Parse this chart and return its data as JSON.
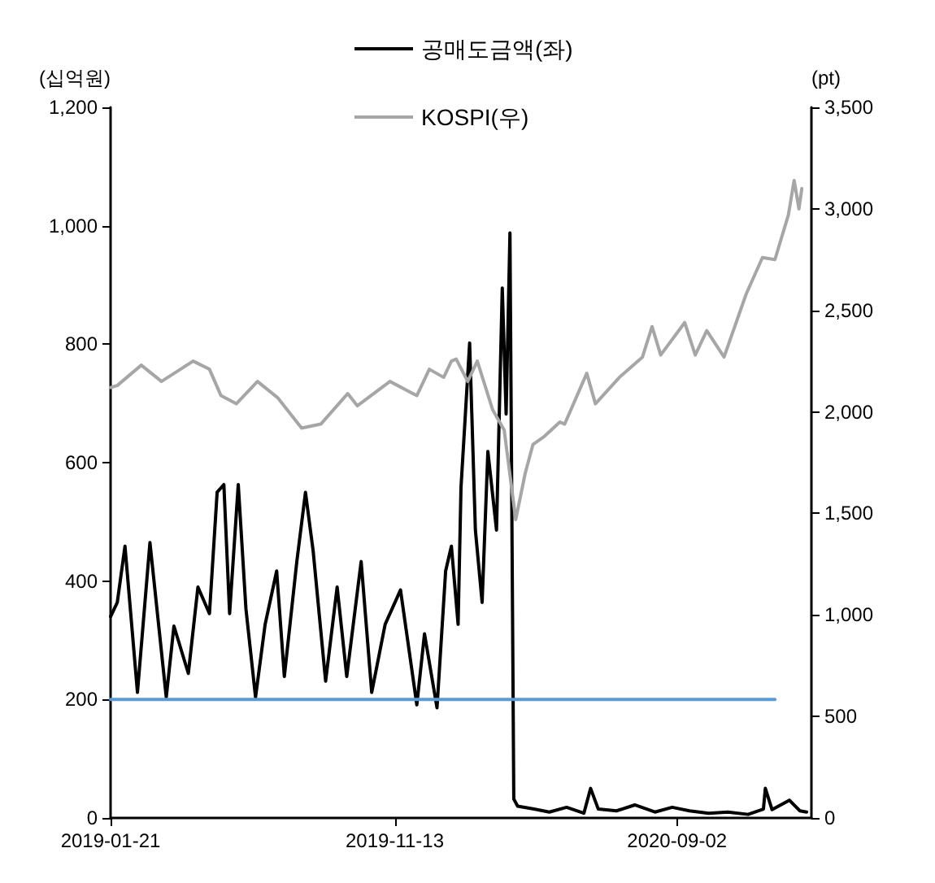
{
  "chart_data": {
    "type": "line",
    "ylabel": "(십억원)",
    "y2label": "(pt)",
    "legend": "top",
    "grid": false,
    "marker": "none",
    "line_style": "solid",
    "xlim": [
      "2019-01-21",
      "2021-01-20"
    ],
    "xticks": [
      "2019-01-21",
      "2019-11-13",
      "2020-09-02"
    ],
    "ylim": [
      0,
      1200
    ],
    "yticks": [
      0,
      200,
      400,
      600,
      800,
      {
        "value": 1000,
        "label": "1,000"
      },
      {
        "value": 1200,
        "label": "1,200"
      }
    ],
    "y2lim": [
      0,
      3500
    ],
    "y2ticks": [
      0,
      500,
      {
        "value": 1000,
        "label": "1,000"
      },
      {
        "value": 1500,
        "label": "1,500"
      },
      {
        "value": 2000,
        "label": "2,000"
      },
      {
        "value": 2500,
        "label": "2,500"
      },
      {
        "value": 3000,
        "label": "3,000"
      },
      {
        "value": 3500,
        "label": "3,500"
      }
    ],
    "series": [
      {
        "name": "공매도금액(좌)",
        "color": "#000000",
        "x": [
          "2019-01-21",
          "2019-01-28",
          "2019-02-05",
          "2019-02-18",
          "2019-03-03",
          "2019-03-20",
          "2019-03-28",
          "2019-04-12",
          "2019-04-22",
          "2019-05-04",
          "2019-05-12",
          "2019-05-19",
          "2019-05-25",
          "2019-06-03",
          "2019-06-11",
          "2019-06-21",
          "2019-07-01",
          "2019-07-13",
          "2019-07-21",
          "2019-08-03",
          "2019-08-12",
          "2019-08-20",
          "2019-09-02",
          "2019-09-14",
          "2019-09-24",
          "2019-10-09",
          "2019-10-20",
          "2019-11-03",
          "2019-11-19",
          "2019-12-06",
          "2019-12-14",
          "2019-12-27",
          "2020-01-05",
          "2020-01-11",
          "2020-01-18",
          "2020-01-21",
          "2020-01-30",
          "2020-02-05",
          "2020-02-12",
          "2020-02-18",
          "2020-02-27",
          "2020-03-04",
          "2020-03-08",
          "2020-03-12",
          "2020-03-16",
          "2020-03-20",
          "2020-04-06",
          "2020-04-22",
          "2020-05-10",
          "2020-05-28",
          "2020-06-04",
          "2020-06-12",
          "2020-07-01",
          "2020-07-20",
          "2020-08-10",
          "2020-08-28",
          "2020-09-15",
          "2020-10-05",
          "2020-10-25",
          "2020-11-15",
          "2020-12-01",
          "2020-12-03",
          "2020-12-10",
          "2020-12-28",
          "2021-01-08",
          "2021-01-15"
        ],
        "values": [
          340,
          364,
          459,
          212,
          465,
          204,
          324,
          244,
          390,
          345,
          550,
          563,
          345,
          563,
          353,
          204,
          327,
          417,
          239,
          433,
          550,
          451,
          231,
          390,
          239,
          433,
          212,
          327,
          385,
          191,
          311,
          186,
          417,
          459,
          327,
          558,
          802,
          486,
          364,
          619,
          486,
          895,
          682,
          988,
          32,
          20,
          15,
          10,
          18,
          8,
          50,
          15,
          12,
          22,
          10,
          18,
          12,
          8,
          10,
          6,
          15,
          50,
          14,
          30,
          12,
          10
        ],
        "axis": "y"
      },
      {
        "name": "KOSPI(우)",
        "color": "#a6a6a6",
        "axis": "y2",
        "x": [
          "2019-01-21",
          "2019-01-28",
          "2019-02-22",
          "2019-03-15",
          "2019-04-17",
          "2019-05-04",
          "2019-05-16",
          "2019-06-01",
          "2019-06-23",
          "2019-07-14",
          "2019-08-08",
          "2019-08-28",
          "2019-09-25",
          "2019-10-05",
          "2019-11-08",
          "2019-12-06",
          "2019-12-19",
          "2020-01-03",
          "2020-01-11",
          "2020-01-16",
          "2020-01-28",
          "2020-02-07",
          "2020-02-23",
          "2020-03-06",
          "2020-03-18",
          "2020-03-28",
          "2020-04-05",
          "2020-04-17",
          "2020-05-03",
          "2020-05-08",
          "2020-05-31",
          "2020-06-09",
          "2020-07-04",
          "2020-07-28",
          "2020-08-07",
          "2020-08-16",
          "2020-09-10",
          "2020-09-21",
          "2020-10-03",
          "2020-10-21",
          "2020-11-13",
          "2020-11-30",
          "2020-12-13",
          "2020-12-27",
          "2021-01-02",
          "2021-01-07",
          "2021-01-10"
        ],
        "values": [
          2120,
          2130,
          2230,
          2150,
          2250,
          2210,
          2080,
          2040,
          2150,
          2070,
          1920,
          1940,
          2090,
          2030,
          2150,
          2080,
          2210,
          2170,
          2250,
          2260,
          2150,
          2250,
          2010,
          1910,
          1470,
          1700,
          1840,
          1880,
          1950,
          1940,
          2190,
          2040,
          2170,
          2270,
          2420,
          2280,
          2440,
          2280,
          2400,
          2270,
          2580,
          2760,
          2750,
          2970,
          3140,
          3000,
          3100
        ]
      },
      {
        "color": "#5b9bd5",
        "axis": "y",
        "x": [
          "2019-01-21",
          "2020-12-13"
        ],
        "values": [
          200,
          200
        ]
      }
    ]
  }
}
